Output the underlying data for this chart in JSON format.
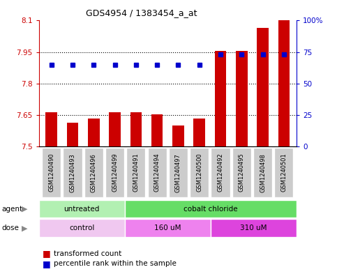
{
  "title": "GDS4954 / 1383454_a_at",
  "samples": [
    "GSM1240490",
    "GSM1240493",
    "GSM1240496",
    "GSM1240499",
    "GSM1240491",
    "GSM1240494",
    "GSM1240497",
    "GSM1240500",
    "GSM1240492",
    "GSM1240495",
    "GSM1240498",
    "GSM1240501"
  ],
  "red_values": [
    7.665,
    7.615,
    7.635,
    7.665,
    7.665,
    7.655,
    7.6,
    7.635,
    7.955,
    7.955,
    8.065,
    8.1
  ],
  "blue_percentile": [
    65,
    65,
    65,
    65,
    65,
    65,
    65,
    65,
    73,
    73,
    73,
    73
  ],
  "ylim_left": [
    7.5,
    8.1
  ],
  "ylim_right": [
    0,
    100
  ],
  "yticks_left": [
    7.5,
    7.65,
    7.8,
    7.95,
    8.1
  ],
  "yticks_right": [
    0,
    25,
    50,
    75,
    100
  ],
  "ytick_labels_left": [
    "7.5",
    "7.65",
    "7.8",
    "7.95",
    "8.1"
  ],
  "ytick_labels_right": [
    "0",
    "25",
    "50",
    "75",
    "100%"
  ],
  "gridlines": [
    7.65,
    7.8,
    7.95
  ],
  "agent_groups": [
    {
      "label": "untreated",
      "start": 0,
      "end": 4,
      "color": "#b2f0b2"
    },
    {
      "label": "cobalt chloride",
      "start": 4,
      "end": 12,
      "color": "#66dd66"
    }
  ],
  "dose_groups": [
    {
      "label": "control",
      "start": 0,
      "end": 4,
      "color": "#f0c8f0"
    },
    {
      "label": "160 uM",
      "start": 4,
      "end": 8,
      "color": "#ee82ee"
    },
    {
      "label": "310 uM",
      "start": 8,
      "end": 12,
      "color": "#dd44dd"
    }
  ],
  "bar_color": "#cc0000",
  "dot_color": "#0000cc",
  "bar_bottom": 7.5,
  "bar_width": 0.55,
  "left_axis_color": "#cc0000",
  "right_axis_color": "#0000cc",
  "legend_red": "transformed count",
  "legend_blue": "percentile rank within the sample",
  "xtick_bg_color": "#cccccc"
}
